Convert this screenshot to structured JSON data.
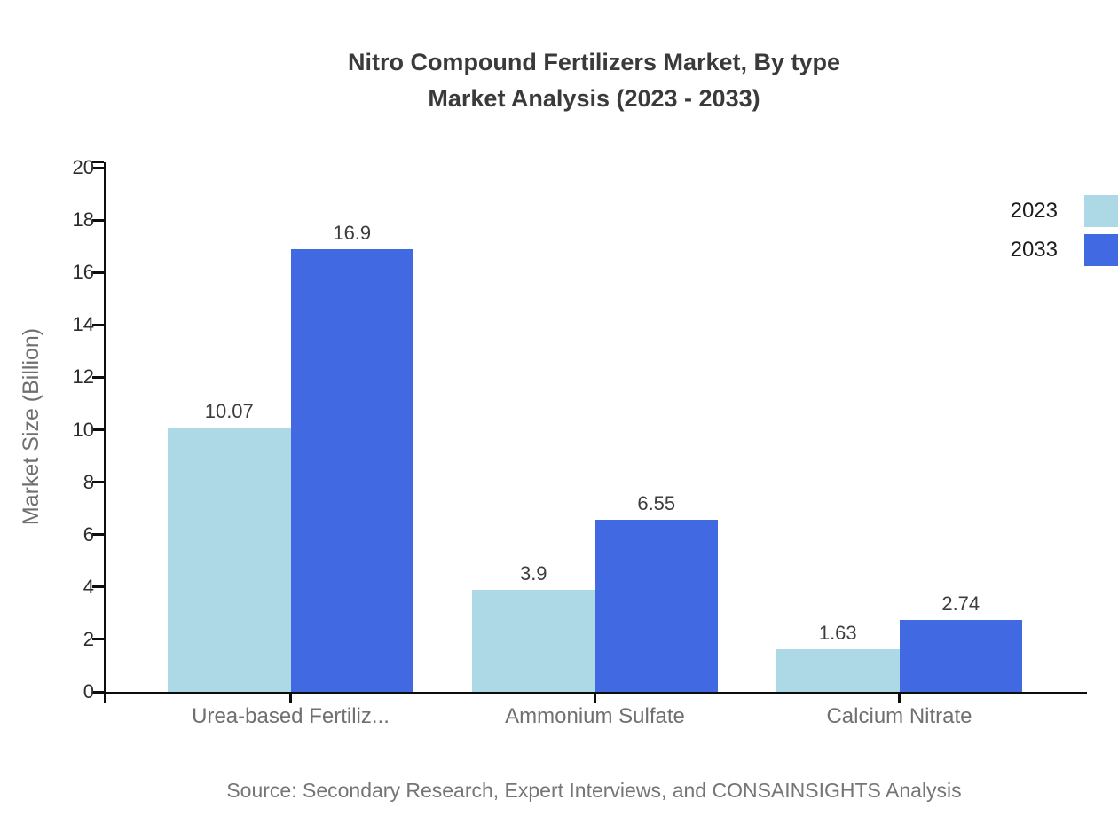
{
  "title": {
    "line1": "Nitro Compound Fertilizers Market, By type",
    "line2": "Market Analysis (2023 - 2033)"
  },
  "source": "Source: Secondary Research, Expert Interviews, and CONSAINSIGHTS Analysis",
  "chart_data": {
    "type": "bar",
    "title": "Nitro Compound Fertilizers Market, By type Market Analysis (2023 - 2033)",
    "xlabel": "",
    "ylabel": "Market Size (Billion)",
    "categories": [
      "Urea-based Fertiliz...",
      "Ammonium Sulfate",
      "Calcium Nitrate"
    ],
    "series": [
      {
        "name": "2023",
        "color": "#ADD8E6",
        "values": [
          10.07,
          3.9,
          1.63
        ]
      },
      {
        "name": "2033",
        "color": "#4169E1",
        "values": [
          16.9,
          6.55,
          2.74
        ]
      }
    ],
    "ylim": [
      0,
      20
    ],
    "yticks": [
      0,
      2,
      4,
      6,
      8,
      10,
      12,
      14,
      16,
      18,
      20
    ],
    "grid": false,
    "legend_position": "top-right",
    "value_labels_shown": true
  },
  "colors": {
    "axis": "#0d0d0d",
    "title_text": "#3a3a3a",
    "category_text": "#707070",
    "source_text": "#757575",
    "series_2023": "#ADD8E6",
    "series_2033": "#4169E1"
  }
}
